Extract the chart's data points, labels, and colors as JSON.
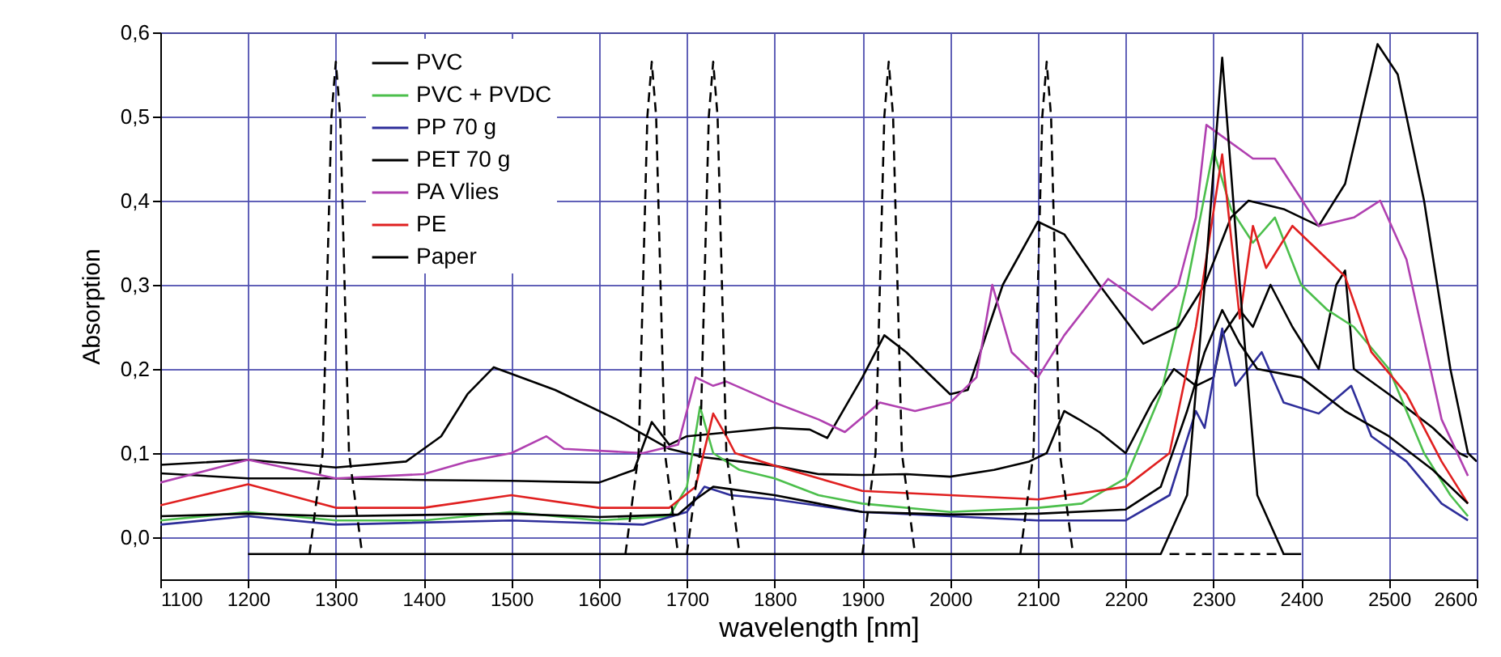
{
  "chart_data": {
    "type": "line",
    "xlabel": "wavelength [nm]",
    "ylabel": "Absorption",
    "xlim": [
      1100,
      2600
    ],
    "xticks": [
      1100,
      1200,
      1300,
      1400,
      1500,
      1600,
      1700,
      1800,
      1900,
      2000,
      2100,
      2200,
      2300,
      2400,
      2500,
      2600
    ],
    "ylim": [
      -0.05,
      0.6
    ],
    "yticks": [
      {
        "value": 0,
        "label": "0,0"
      },
      {
        "value": 0.1,
        "label": "0,1"
      },
      {
        "value": 0.2,
        "label": "0,2"
      },
      {
        "value": 0.3,
        "label": "0,3"
      },
      {
        "value": 0.4,
        "label": "0,4"
      },
      {
        "value": 0.5,
        "label": "0,5"
      },
      {
        "value": 0.6,
        "label": "0,6"
      }
    ],
    "grid": true,
    "legend": "top left",
    "line_style": "solid",
    "series": [
      {
        "name": "PVC",
        "color": "#000000",
        "x": [
          1100,
          1200,
          1300,
          1380,
          1420,
          1450,
          1480,
          1550,
          1620,
          1680,
          1720,
          1760,
          1800,
          1850,
          1900,
          1950,
          2000,
          2050,
          2090,
          2110,
          2130,
          2150,
          2170,
          2200,
          2230,
          2255,
          2280,
          2300,
          2310,
          2330,
          2345,
          2365,
          2390,
          2420,
          2440,
          2450,
          2460,
          2500,
          2550,
          2580,
          2590
        ],
        "values": [
          0.086,
          0.092,
          0.083,
          0.09,
          0.12,
          0.17,
          0.202,
          0.175,
          0.14,
          0.105,
          0.095,
          0.09,
          0.085,
          0.075,
          0.074,
          0.075,
          0.072,
          0.08,
          0.09,
          0.1,
          0.15,
          0.138,
          0.125,
          0.1,
          0.16,
          0.2,
          0.18,
          0.19,
          0.24,
          0.27,
          0.25,
          0.3,
          0.25,
          0.2,
          0.3,
          0.317,
          0.2,
          0.17,
          0.13,
          0.1,
          0.095
        ]
      },
      {
        "name": "PVC + PVDC",
        "color": "#4cbf4c",
        "x": [
          1100,
          1200,
          1300,
          1400,
          1500,
          1600,
          1680,
          1700,
          1715,
          1730,
          1760,
          1800,
          1850,
          1900,
          2000,
          2100,
          2150,
          2200,
          2240,
          2270,
          2300,
          2320,
          2345,
          2370,
          2400,
          2430,
          2460,
          2500,
          2540,
          2570,
          2590
        ],
        "values": [
          0.02,
          0.03,
          0.02,
          0.02,
          0.03,
          0.02,
          0.025,
          0.06,
          0.155,
          0.1,
          0.08,
          0.07,
          0.05,
          0.04,
          0.03,
          0.035,
          0.04,
          0.07,
          0.17,
          0.3,
          0.46,
          0.39,
          0.35,
          0.38,
          0.3,
          0.27,
          0.25,
          0.2,
          0.1,
          0.05,
          0.025
        ]
      },
      {
        "name": "PP 70 g",
        "color": "#2e2e9a",
        "x": [
          1100,
          1200,
          1300,
          1500,
          1650,
          1700,
          1720,
          1750,
          1800,
          1900,
          2000,
          2100,
          2200,
          2250,
          2280,
          2290,
          2310,
          2325,
          2340,
          2355,
          2380,
          2420,
          2457,
          2480,
          2520,
          2560,
          2590
        ],
        "values": [
          0.015,
          0.025,
          0.015,
          0.02,
          0.015,
          0.03,
          0.06,
          0.05,
          0.045,
          0.03,
          0.025,
          0.02,
          0.02,
          0.05,
          0.15,
          0.13,
          0.248,
          0.18,
          0.2,
          0.22,
          0.16,
          0.147,
          0.18,
          0.12,
          0.09,
          0.04,
          0.02
        ]
      },
      {
        "name": "PET 70 g",
        "color": "#000000",
        "x": [
          1100,
          1200,
          1300,
          1400,
          1500,
          1600,
          1640,
          1660,
          1680,
          1700,
          1750,
          1800,
          1840,
          1860,
          1900,
          1925,
          1950,
          2000,
          2020,
          2060,
          2100,
          2130,
          2170,
          2220,
          2260,
          2290,
          2320,
          2340,
          2380,
          2420,
          2450,
          2487,
          2510,
          2540,
          2570,
          2590,
          2600
        ],
        "values": [
          0.076,
          0.07,
          0.07,
          0.068,
          0.067,
          0.065,
          0.08,
          0.137,
          0.11,
          0.12,
          0.125,
          0.13,
          0.128,
          0.118,
          0.19,
          0.24,
          0.22,
          0.17,
          0.175,
          0.3,
          0.375,
          0.36,
          0.3,
          0.23,
          0.25,
          0.3,
          0.38,
          0.4,
          0.39,
          0.37,
          0.42,
          0.586,
          0.55,
          0.4,
          0.2,
          0.1,
          0.09
        ]
      },
      {
        "name": "PA Vlies",
        "color": "#b040b0",
        "x": [
          1100,
          1200,
          1300,
          1400,
          1450,
          1500,
          1540,
          1560,
          1650,
          1690,
          1710,
          1730,
          1745,
          1800,
          1850,
          1880,
          1920,
          1960,
          2000,
          2030,
          2048,
          2070,
          2100,
          2130,
          2180,
          2230,
          2260,
          2280,
          2292,
          2345,
          2370,
          2420,
          2460,
          2490,
          2520,
          2560,
          2590
        ],
        "values": [
          0.065,
          0.092,
          0.07,
          0.075,
          0.09,
          0.1,
          0.12,
          0.105,
          0.1,
          0.11,
          0.19,
          0.18,
          0.185,
          0.16,
          0.14,
          0.125,
          0.16,
          0.15,
          0.16,
          0.19,
          0.3,
          0.22,
          0.19,
          0.24,
          0.307,
          0.27,
          0.3,
          0.38,
          0.49,
          0.45,
          0.45,
          0.37,
          0.38,
          0.4,
          0.33,
          0.14,
          0.073
        ]
      },
      {
        "name": "PE",
        "color": "#e02020",
        "x": [
          1100,
          1200,
          1300,
          1400,
          1500,
          1600,
          1680,
          1710,
          1730,
          1745,
          1755,
          1770,
          1800,
          1900,
          2000,
          2100,
          2200,
          2250,
          2280,
          2310,
          2330,
          2345,
          2360,
          2390,
          2430,
          2450,
          2480,
          2520,
          2560,
          2590
        ],
        "values": [
          0.038,
          0.063,
          0.035,
          0.035,
          0.05,
          0.035,
          0.035,
          0.06,
          0.147,
          0.12,
          0.1,
          0.095,
          0.085,
          0.055,
          0.05,
          0.045,
          0.06,
          0.1,
          0.25,
          0.455,
          0.26,
          0.37,
          0.32,
          0.37,
          0.33,
          0.31,
          0.22,
          0.17,
          0.09,
          0.04
        ]
      },
      {
        "name": "Paper",
        "color": "#000000",
        "x": [
          1100,
          1200,
          1300,
          1500,
          1600,
          1690,
          1710,
          1730,
          1800,
          1850,
          1900,
          2000,
          2100,
          2200,
          2240,
          2270,
          2290,
          2310,
          2330,
          2350,
          2400,
          2450,
          2500,
          2550,
          2590
        ],
        "values": [
          0.025,
          0.028,
          0.025,
          0.028,
          0.024,
          0.027,
          0.045,
          0.06,
          0.05,
          0.04,
          0.03,
          0.027,
          0.028,
          0.033,
          0.06,
          0.15,
          0.22,
          0.27,
          0.23,
          0.2,
          0.19,
          0.15,
          0.12,
          0.08,
          0.04
        ]
      },
      {
        "color": "#000000",
        "line_style": "dashed",
        "x": [
          1270,
          1285,
          1295,
          1300,
          1305,
          1315,
          1330
        ],
        "values": [
          -0.02,
          0.1,
          0.5,
          0.565,
          0.5,
          0.1,
          -0.02
        ]
      },
      {
        "color": "#000000",
        "line_style": "dashed",
        "x": [
          1630,
          1645,
          1655,
          1660,
          1665,
          1675,
          1690
        ],
        "values": [
          -0.02,
          0.1,
          0.5,
          0.565,
          0.5,
          0.1,
          -0.02
        ]
      },
      {
        "color": "#000000",
        "line_style": "dashed",
        "x": [
          1700,
          1715,
          1725,
          1730,
          1735,
          1745,
          1760
        ],
        "values": [
          -0.02,
          0.1,
          0.5,
          0.565,
          0.5,
          0.1,
          -0.02
        ]
      },
      {
        "color": "#000000",
        "line_style": "dashed",
        "x": [
          1900,
          1915,
          1925,
          1930,
          1935,
          1945,
          1960
        ],
        "values": [
          -0.02,
          0.1,
          0.5,
          0.565,
          0.5,
          0.1,
          -0.02
        ]
      },
      {
        "color": "#000000",
        "line_style": "dashed",
        "x": [
          2080,
          2095,
          2105,
          2110,
          2115,
          2125,
          2140
        ],
        "values": [
          -0.02,
          0.1,
          0.5,
          0.565,
          0.5,
          0.1,
          -0.02
        ]
      },
      {
        "color": "#000000",
        "line_style": "dashed",
        "x": [
          2250,
          2380
        ],
        "values": [
          -0.02,
          -0.02
        ]
      },
      {
        "color": "#000000",
        "line_style": "solid",
        "x": [
          1200,
          2240,
          2270,
          2290,
          2310,
          2330,
          2350,
          2380,
          2400
        ],
        "values": [
          -0.02,
          -0.02,
          0.05,
          0.3,
          0.57,
          0.3,
          0.05,
          -0.02,
          -0.02
        ]
      }
    ]
  }
}
